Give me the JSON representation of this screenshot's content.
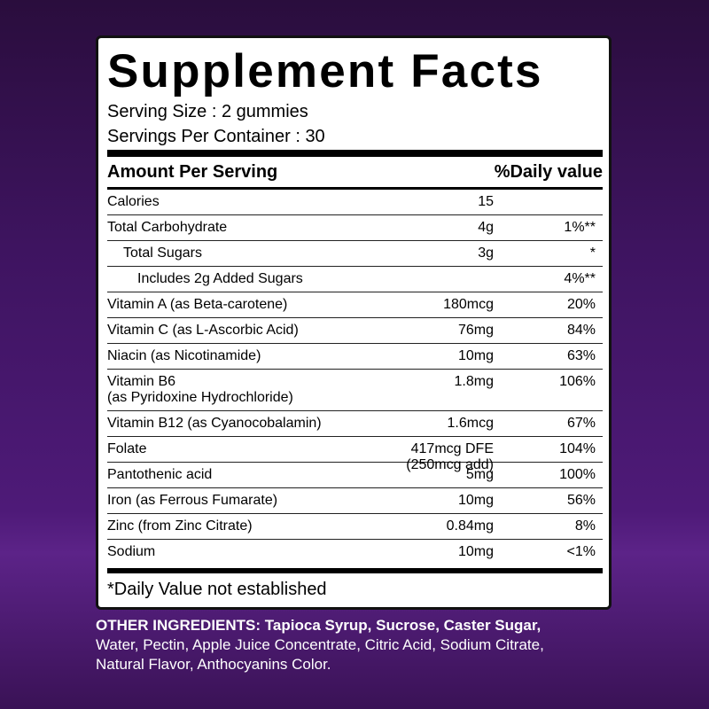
{
  "title": "Supplement Facts",
  "serving": [
    "Serving Size : 2  gummies",
    "Servings Per Container : 30"
  ],
  "table": {
    "header": [
      "Amount Per Serving",
      "%Daily value"
    ],
    "rows": [
      {
        "name": [
          "Calories"
        ],
        "amount": [
          "15"
        ]
      },
      {
        "name": [
          "Total Carbohydrate"
        ],
        "amount": [
          "4g"
        ],
        "dv": "1%**"
      },
      {
        "name": [
          "Total Sugars"
        ],
        "amount": [
          "3g"
        ],
        "dv": "*"
      },
      {
        "name": [
          "Includes 2g Added Sugars"
        ],
        "dv": "4%**"
      },
      {
        "name": [
          "Vitamin A (as Beta-carotene)"
        ],
        "amount": [
          "180mcg"
        ],
        "dv": "20%"
      },
      {
        "name": [
          "Vitamin C (as L-Ascorbic Acid)"
        ],
        "amount": [
          "76mg"
        ],
        "dv": "84%"
      },
      {
        "name": [
          "Niacin (as Nicotinamide)"
        ],
        "amount": [
          "10mg"
        ],
        "dv": "63%"
      },
      {
        "name": [
          "Vitamin B6",
          "(as Pyridoxine Hydrochloride)"
        ],
        "amount": [
          "1.8mg"
        ],
        "dv": "106%"
      },
      {
        "name": [
          "Vitamin B12 (as Cyanocobalamin)"
        ],
        "amount": [
          "1.6mcg"
        ],
        "dv": "67%"
      },
      {
        "name": [
          "Folate"
        ],
        "amount": [
          "417mcg DFE",
          "(250mcg add)"
        ],
        "dv": "104%"
      },
      {
        "name": [
          "Pantothenic acid"
        ],
        "amount": [
          "5mg"
        ],
        "dv": "100%"
      },
      {
        "name": [
          "Iron (as Ferrous Fumarate)"
        ],
        "amount": [
          "10mg"
        ],
        "dv": "56%"
      },
      {
        "name": [
          "Zinc (from Zinc Citrate)"
        ],
        "amount": [
          "0.84mg"
        ],
        "dv": "8%"
      },
      {
        "name": [
          "Sodium"
        ],
        "amount": [
          "10mg"
        ],
        "dv": "<1%"
      }
    ]
  },
  "footnote": "*Daily Value not established",
  "other_ingredients": {
    "label": "OTHER INGREDIENTS:",
    "bold": "Tapioca Syrup, Sucrose, Caster Sugar,",
    "text": "Water, Pectin, Apple Juice Concentrate, Citric Acid, Sodium Citrate, Natural Flavor, Anthocyanins Color."
  }
}
